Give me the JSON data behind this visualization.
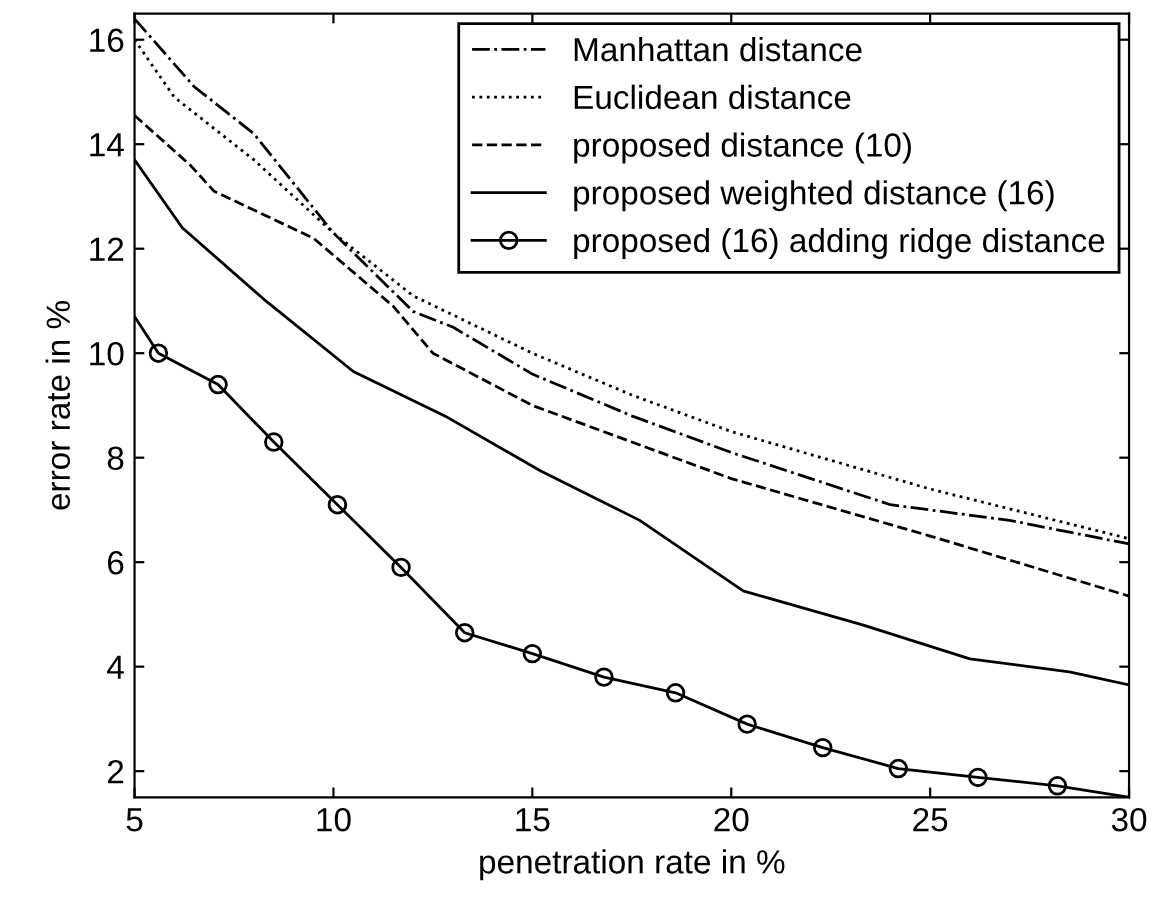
{
  "chart_data": {
    "type": "line",
    "xlabel": "penetration rate in %",
    "ylabel": "error rate in %",
    "xlim": [
      5,
      30
    ],
    "ylim": [
      1.5,
      16.5
    ],
    "xticks": [
      5,
      10,
      15,
      20,
      25,
      30
    ],
    "yticks": [
      2,
      4,
      6,
      8,
      10,
      12,
      14,
      16
    ],
    "grid": false,
    "legend": "top right",
    "series": [
      {
        "name": "Manhattan distance",
        "color": "#000000",
        "line_style": "dashdot",
        "marker": "none",
        "x": [
          5,
          6.5,
          8,
          10,
          12,
          13,
          15,
          17.5,
          20,
          22,
          24,
          27,
          30
        ],
        "values": [
          16.4,
          15.1,
          14.2,
          12.3,
          10.8,
          10.5,
          9.6,
          8.8,
          8.1,
          7.6,
          7.1,
          6.8,
          6.35
        ]
      },
      {
        "name": "Euclidean distance",
        "color": "#000000",
        "line_style": "dotted",
        "marker": "none",
        "x": [
          5,
          6,
          8,
          10,
          12,
          15,
          17.5,
          20,
          25,
          30
        ],
        "values": [
          16.0,
          14.9,
          13.7,
          12.3,
          11.1,
          10.0,
          9.2,
          8.5,
          7.4,
          6.45
        ]
      },
      {
        "name": "proposed distance (10)",
        "color": "#000000",
        "line_style": "dashed",
        "marker": "none",
        "x": [
          5,
          6.4,
          7,
          9.5,
          11.5,
          12.5,
          15,
          17.5,
          20,
          25,
          30
        ],
        "values": [
          14.55,
          13.6,
          13.1,
          12.2,
          10.9,
          10.0,
          9.0,
          8.3,
          7.6,
          6.5,
          5.35
        ]
      },
      {
        "name": "proposed weighted distance (16)",
        "color": "#000000",
        "line_style": "solid",
        "marker": "none",
        "x": [
          5,
          6.2,
          8.3,
          10.5,
          12.8,
          15.2,
          17.7,
          20.3,
          23.3,
          26,
          28.5,
          30
        ],
        "values": [
          13.7,
          12.4,
          11.0,
          9.65,
          8.8,
          7.75,
          6.8,
          5.45,
          4.8,
          4.15,
          3.9,
          3.65
        ]
      },
      {
        "name": "proposed (16) adding ridge distance",
        "color": "#000000",
        "line_style": "solid",
        "marker": "circle",
        "x": [
          5,
          5.6,
          7.1,
          8.5,
          10.1,
          11.7,
          13.3,
          15.0,
          16.8,
          18.6,
          20.4,
          22.3,
          24.2,
          26.2,
          28.2,
          30
        ],
        "values": [
          10.7,
          10.0,
          9.4,
          8.3,
          7.1,
          5.9,
          4.65,
          4.25,
          3.8,
          3.5,
          2.9,
          2.45,
          2.05,
          1.88,
          1.72,
          1.5
        ]
      }
    ]
  }
}
